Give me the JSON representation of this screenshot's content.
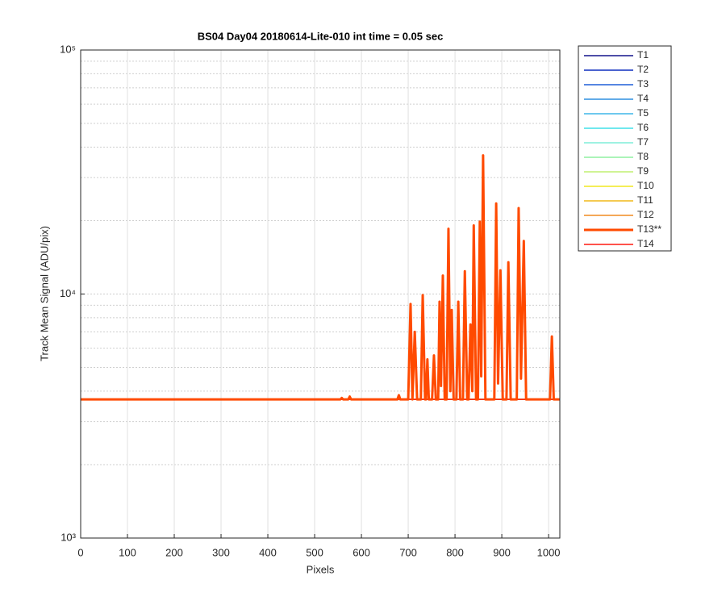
{
  "chart_data": {
    "type": "line",
    "title": "BS04 Day04 20180614-Lite-010 int time = 0.05 sec",
    "xlabel": "Pixels",
    "ylabel": "Track Mean Signal (ADU/pix)",
    "yscale": "log",
    "grid": true,
    "legend_position": "outside-right",
    "xlim": [
      0,
      1024
    ],
    "xticks": [
      0,
      100,
      200,
      300,
      400,
      500,
      600,
      700,
      800,
      900,
      1000
    ],
    "ylim": [
      1000,
      100000
    ],
    "yticks": [
      {
        "value": 1000,
        "label": "10³"
      },
      {
        "value": 10000,
        "label": "10⁴"
      },
      {
        "value": 100000,
        "label": "10⁵"
      }
    ],
    "yminorticks": [
      2000,
      3000,
      4000,
      5000,
      6000,
      7000,
      8000,
      9000,
      20000,
      30000,
      40000,
      50000,
      60000,
      70000,
      80000,
      90000
    ],
    "series": [
      {
        "name": "T1",
        "color": "#14148c",
        "line_width": 1.5,
        "x": [
          0,
          1024
        ],
        "values": [
          3700,
          3700
        ]
      },
      {
        "name": "T2",
        "color": "#0f2fbf",
        "line_width": 1.5,
        "x": [
          0,
          1024
        ],
        "values": [
          3700,
          3700
        ]
      },
      {
        "name": "T3",
        "color": "#1f5fd9",
        "line_width": 1.5,
        "x": [
          0,
          1024
        ],
        "values": [
          3700,
          3700
        ]
      },
      {
        "name": "T4",
        "color": "#2f8fe0",
        "line_width": 1.5,
        "x": [
          0,
          1024
        ],
        "values": [
          3700,
          3700
        ]
      },
      {
        "name": "T5",
        "color": "#3fb5e8",
        "line_width": 1.5,
        "x": [
          0,
          1024
        ],
        "values": [
          3700,
          3700
        ]
      },
      {
        "name": "T6",
        "color": "#40e0e8",
        "line_width": 1.5,
        "x": [
          0,
          1024
        ],
        "values": [
          3700,
          3700
        ]
      },
      {
        "name": "T7",
        "color": "#7feed8",
        "line_width": 1.5,
        "x": [
          0,
          1024
        ],
        "values": [
          3700,
          3700
        ]
      },
      {
        "name": "T8",
        "color": "#8ff0a0",
        "line_width": 1.5,
        "x": [
          0,
          1024
        ],
        "values": [
          3700,
          3700
        ]
      },
      {
        "name": "T9",
        "color": "#c0f070",
        "line_width": 1.5,
        "x": [
          0,
          1024
        ],
        "values": [
          3700,
          3700
        ]
      },
      {
        "name": "T10",
        "color": "#f0e820",
        "line_width": 1.5,
        "x": [
          0,
          1024
        ],
        "values": [
          3700,
          3700
        ]
      },
      {
        "name": "T11",
        "color": "#f0b818",
        "line_width": 1.5,
        "x": [
          0,
          1024
        ],
        "values": [
          3700,
          3700
        ]
      },
      {
        "name": "T12",
        "color": "#f08c20",
        "line_width": 1.5,
        "x": [
          0,
          1024
        ],
        "values": [
          3700,
          3700
        ]
      },
      {
        "name": "T14",
        "color": "#ff1a10",
        "line_width": 1.5,
        "x": [
          0,
          1024
        ],
        "values": [
          3700,
          3700
        ]
      },
      {
        "name": "T13**",
        "color": "#ff4a00",
        "line_width": 3,
        "x": [
          0,
          555,
          558,
          561,
          572,
          575,
          578,
          677,
          680,
          683,
          700,
          705,
          709,
          714,
          719,
          727,
          731,
          736,
          738,
          741,
          744,
          751,
          755,
          759,
          764,
          767,
          770,
          774,
          778,
          782,
          786,
          790,
          793,
          797,
          803,
          807,
          811,
          817,
          821,
          826,
          829,
          833,
          837,
          840,
          845,
          849,
          853,
          856,
          860,
          865,
          884,
          888,
          892,
          897,
          902,
          910,
          914,
          919,
          932,
          936,
          941,
          947,
          952,
          1003,
          1007,
          1011,
          1024
        ],
        "values": [
          3700,
          3700,
          3750,
          3700,
          3700,
          3800,
          3700,
          3700,
          3850,
          3700,
          3700,
          9100,
          3700,
          7000,
          3700,
          3700,
          9900,
          3700,
          3700,
          5400,
          3700,
          3700,
          5600,
          3700,
          3700,
          9300,
          4200,
          11900,
          3700,
          3700,
          18500,
          4000,
          8600,
          3700,
          3700,
          9300,
          3700,
          3700,
          12400,
          3700,
          3700,
          7500,
          4000,
          19100,
          3700,
          3700,
          19800,
          4600,
          37000,
          3700,
          3700,
          23500,
          4300,
          12500,
          3700,
          3700,
          13500,
          3700,
          3700,
          22500,
          4500,
          16500,
          3700,
          3700,
          6700,
          3700,
          3700
        ]
      }
    ]
  }
}
